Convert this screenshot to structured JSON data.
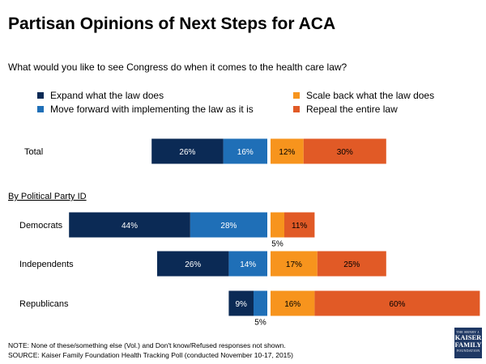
{
  "title": "Partisan Opinions of Next Steps for ACA",
  "subtitle": "What would you like to see Congress do when it comes to the health care law?",
  "legend": [
    {
      "label": "Expand what the law does",
      "color": "#0b2a55"
    },
    {
      "label": "Move forward with implementing the law as it is",
      "color": "#1f6fb7"
    },
    {
      "label": "Scale back what the law does",
      "color": "#f7941d"
    },
    {
      "label": "Repeal the entire law",
      "color": "#e15a26"
    }
  ],
  "section_label": "By Political Party ID",
  "chart_data": {
    "type": "bar",
    "orientation": "horizontal-diverging",
    "title": "Partisan Opinions of Next Steps for ACA",
    "categories": [
      "Total",
      "Democrats",
      "Independents",
      "Republicans"
    ],
    "series": [
      {
        "name": "Expand what the law does",
        "side": "left",
        "values": [
          26,
          44,
          26,
          9
        ],
        "labels": [
          "26%",
          "44%",
          "26%",
          "9%"
        ]
      },
      {
        "name": "Move forward with implementing the law as it is",
        "side": "left",
        "values": [
          16,
          28,
          14,
          5
        ],
        "labels": [
          "16%",
          "28%",
          "14%",
          "5%"
        ]
      },
      {
        "name": "Scale back what the law does",
        "side": "right",
        "values": [
          12,
          5,
          17,
          16
        ],
        "labels": [
          "12%",
          "5%",
          "17%",
          "16%"
        ]
      },
      {
        "name": "Repeal the entire law",
        "side": "right",
        "values": [
          30,
          11,
          25,
          60
        ],
        "labels": [
          "30%",
          "11%",
          "25%",
          "60%"
        ]
      }
    ],
    "xlabel": "",
    "ylabel": ""
  },
  "note": "NOTE: None of these/something else (Vol.) and Don't know/Refused responses not shown.",
  "source": "SOURCE: Kaiser Family Foundation Health Tracking Poll (conducted November 10-17, 2015)",
  "logo": {
    "line1": "THE HENRY J.",
    "line2": "KAISER",
    "line3": "FAMILY",
    "line4": "FOUNDATION"
  }
}
